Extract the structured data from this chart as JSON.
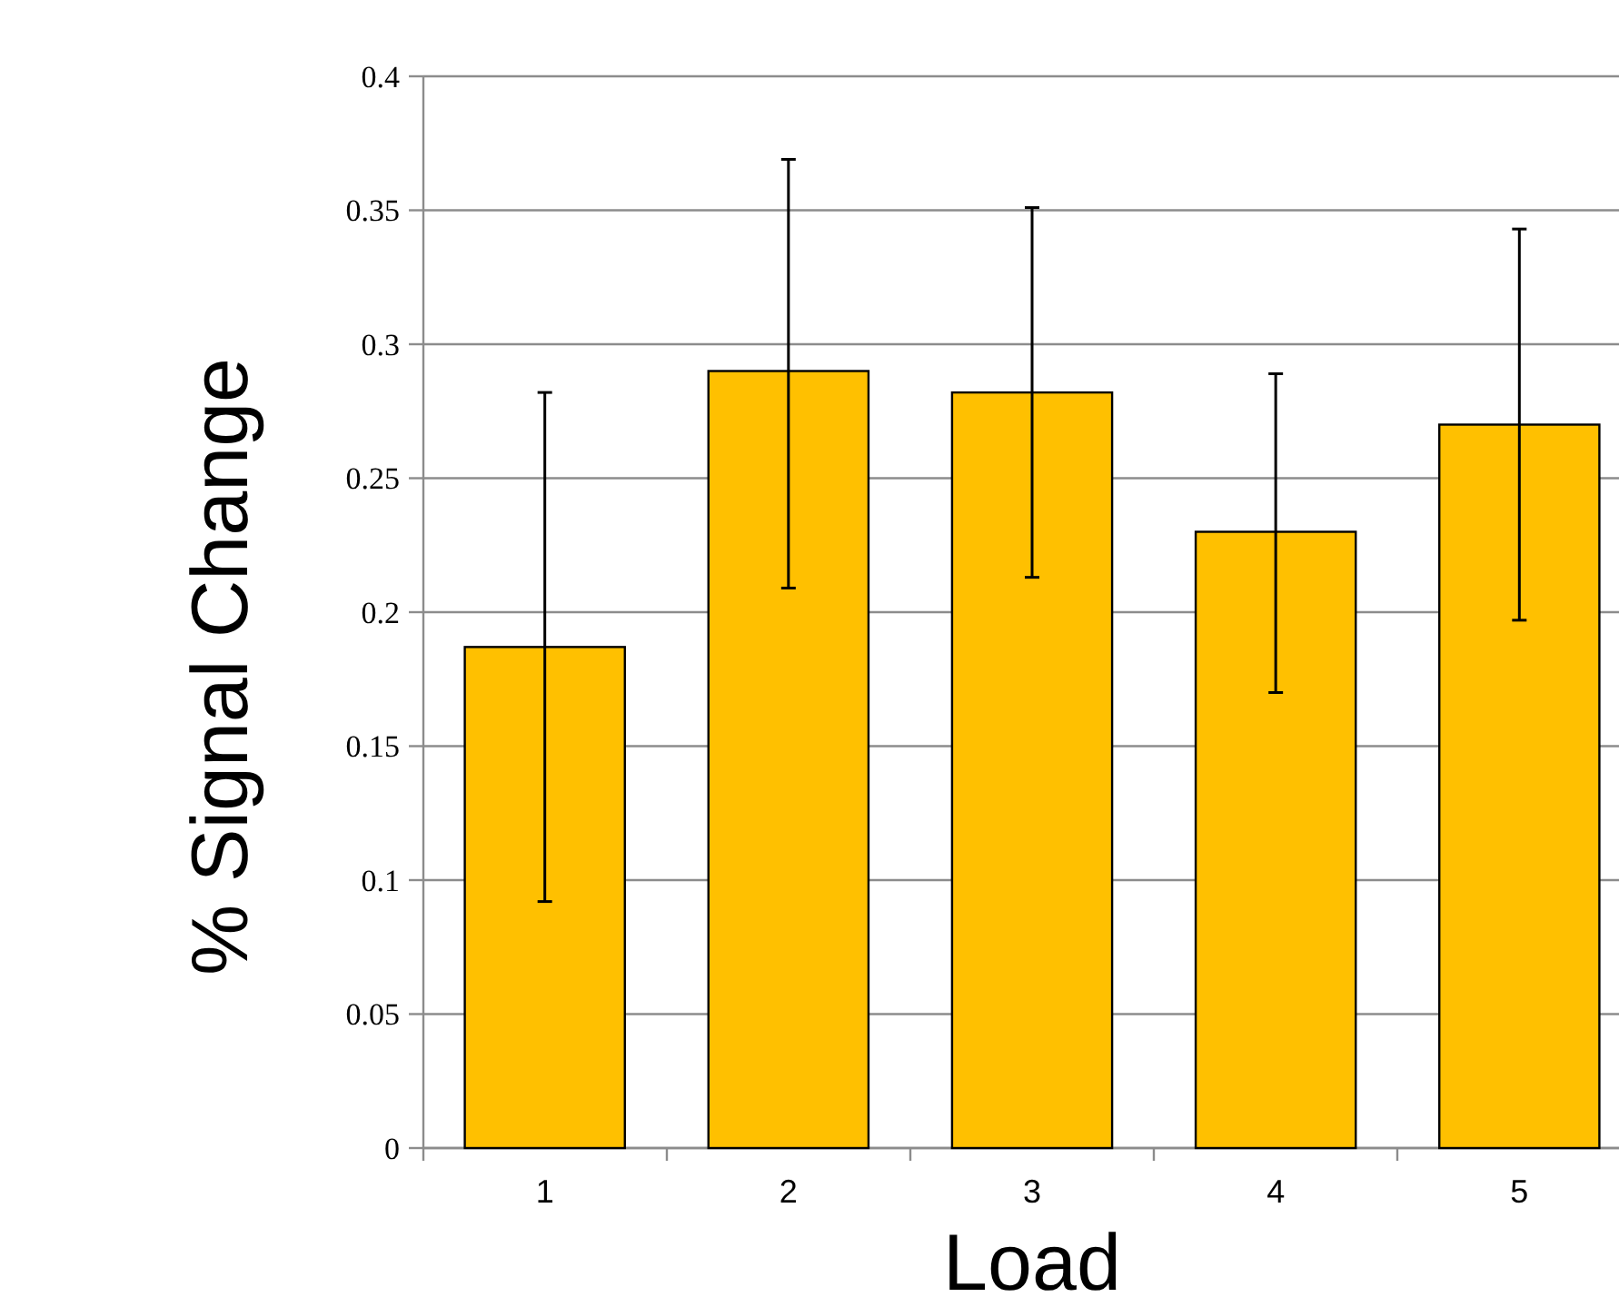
{
  "chart_data": {
    "type": "bar",
    "xlabel": "Load",
    "ylabel": "% Signal Change",
    "categories": [
      "1",
      "2",
      "3",
      "4",
      "5"
    ],
    "values": [
      0.187,
      0.29,
      0.282,
      0.23,
      0.27
    ],
    "errors": [
      [
        0.092,
        0.282
      ],
      [
        0.209,
        0.369
      ],
      [
        0.213,
        0.351
      ],
      [
        0.17,
        0.289
      ],
      [
        0.197,
        0.343
      ]
    ],
    "color": "#ffc000",
    "ylim": [
      0,
      0.4
    ],
    "yticks": [
      0,
      0.05,
      0.1,
      0.15,
      0.2,
      0.25,
      0.3,
      0.35,
      0.4
    ],
    "grid": "y"
  }
}
